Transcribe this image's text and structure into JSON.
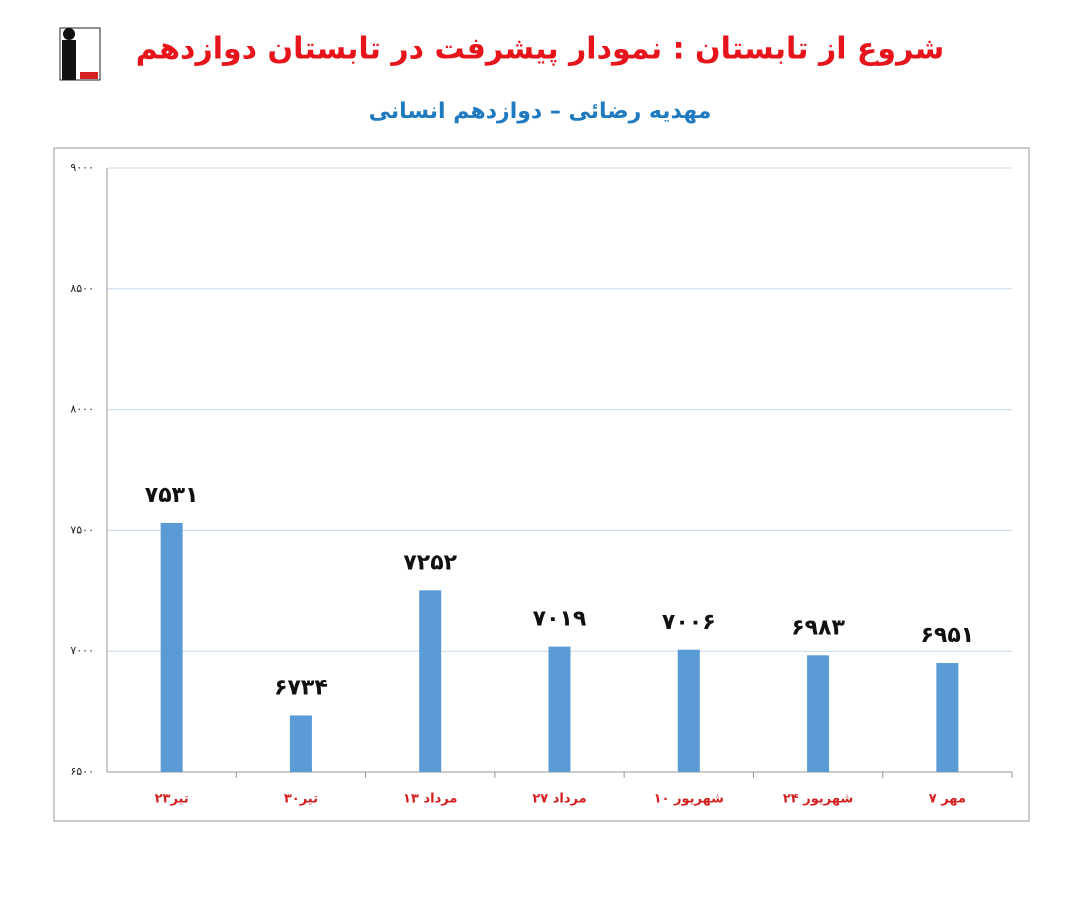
{
  "chart_data": {
    "type": "bar",
    "title": "شروع از تابستان : نمودار پیشرفت در تابستان دوازدهم",
    "subtitle": "مهدیه رضائی – دوازدهم انسانی",
    "categories": [
      "۲۳تیر",
      "۳۰تیر",
      "۱۳ مرداد",
      "۲۷ مرداد",
      "۱۰ شهریور",
      "۲۴ شهریور",
      "۷ مهر"
    ],
    "values": [
      7531,
      6734,
      7252,
      7019,
      7006,
      6983,
      6951
    ],
    "value_labels": [
      "۷۵۳۱",
      "۶۷۳۴",
      "۷۲۵۲",
      "۷۰۱۹",
      "۷۰۰۶",
      "۶۹۸۳",
      "۶۹۵۱"
    ],
    "color": "#5b9bd5",
    "ylim": [
      6500,
      9000
    ],
    "yticks": [
      {
        "value": 6500,
        "label": "۶۵۰۰"
      },
      {
        "value": 7000,
        "label": "۷۰۰۰"
      },
      {
        "value": 7500,
        "label": "۷۵۰۰"
      },
      {
        "value": 8000,
        "label": "۸۰۰۰"
      },
      {
        "value": 8500,
        "label": "۸۵۰۰"
      },
      {
        "value": 9000,
        "label": "۹۰۰۰"
      }
    ],
    "grid": true
  }
}
